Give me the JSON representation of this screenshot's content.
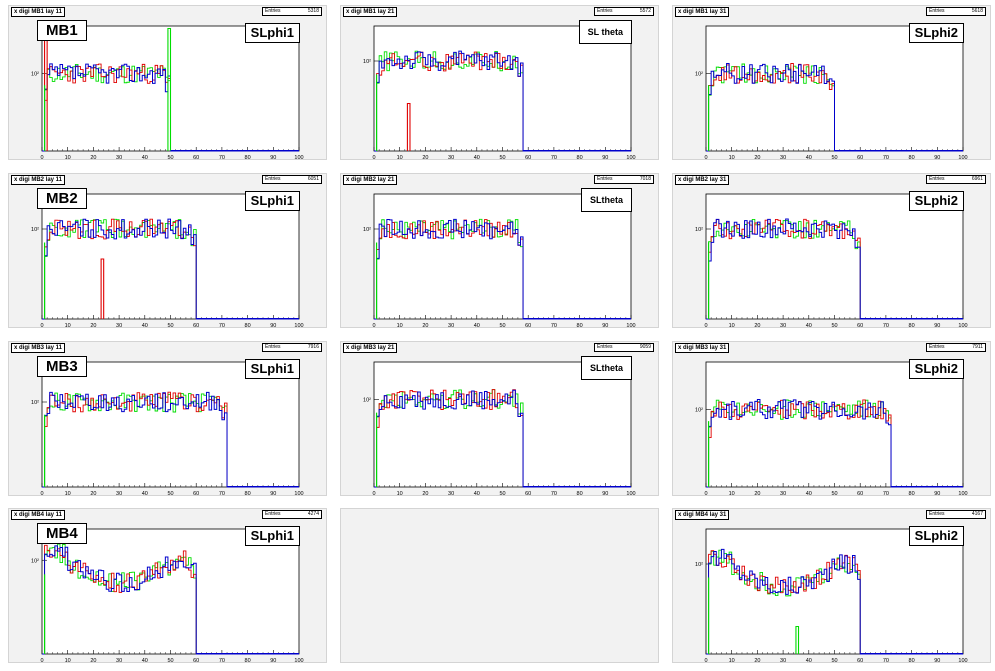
{
  "colors": {
    "red": "#e00000",
    "green": "#00dd00",
    "blue": "#0000cc",
    "frame": "#000000"
  },
  "axis": {
    "xmin": 0,
    "xmax": 100,
    "x_ticks": [
      "0",
      "10",
      "20",
      "30",
      "40",
      "50",
      "60",
      "70",
      "80",
      "90",
      "100"
    ],
    "y_tick": "10²",
    "log_y": true
  },
  "pads": [
    {
      "title": "x digi MB1 lay 11",
      "stats_label": "Entries",
      "entries": "5318",
      "mb": "MB1",
      "sl": "SLphi1",
      "sl_style": "big",
      "end": 50,
      "level": 0.62,
      "chart_data": {
        "type": "histogram",
        "x_range": [
          0,
          100
        ],
        "log_y": true,
        "series": [
          {
            "color": "red",
            "spikes": [
              [
                1,
                0.9
              ]
            ]
          },
          {
            "color": "green",
            "spikes": [
              [
                49,
                0.98
              ]
            ]
          },
          {
            "color": "blue",
            "plateau_end": 50
          }
        ]
      }
    },
    {
      "title": "x digi MB1 lay 21",
      "stats_label": "Entries",
      "entries": "5572",
      "sl": "SL theta",
      "sl_style": "small",
      "end": 58,
      "level": 0.72,
      "chart_data": {
        "type": "histogram",
        "x_range": [
          0,
          100
        ],
        "log_y": true,
        "series": [
          {
            "color": "red",
            "spikes": [
              [
                13,
                0.38
              ]
            ]
          },
          {
            "color": "blue",
            "plateau_end": 58
          }
        ]
      }
    },
    {
      "title": "x digi MB1 lay 31",
      "stats_label": "Entries",
      "entries": "5618",
      "sl": "SLphi2",
      "sl_style": "big",
      "end": 50,
      "level": 0.62,
      "chart_data": {
        "type": "histogram",
        "x_range": [
          0,
          100
        ],
        "log_y": true,
        "series": [
          {
            "color": "blue",
            "plateau_end": 50
          }
        ]
      }
    },
    {
      "title": "x digi MB2 lay 11",
      "stats_label": "Entries",
      "entries": "6051",
      "mb": "MB2",
      "sl": "SLphi1",
      "sl_style": "big",
      "end": 60,
      "level": 0.72,
      "chart_data": {
        "type": "histogram",
        "x_range": [
          0,
          100
        ],
        "log_y": true,
        "series": [
          {
            "color": "red",
            "spikes": [
              [
                23,
                0.48
              ]
            ]
          },
          {
            "color": "blue",
            "plateau_end": 60
          }
        ]
      }
    },
    {
      "title": "x digi MB2 lay 21",
      "stats_label": "Entries",
      "entries": "7018",
      "sl": "SLtheta",
      "sl_style": "small",
      "end": 58,
      "level": 0.72,
      "chart_data": {
        "type": "histogram",
        "x_range": [
          0,
          100
        ],
        "log_y": true,
        "series": [
          {
            "color": "blue",
            "plateau_end": 58
          }
        ]
      }
    },
    {
      "title": "x digi MB2 lay 31",
      "stats_label": "Entries",
      "entries": "6961",
      "sl": "SLphi2",
      "sl_style": "big",
      "end": 60,
      "level": 0.72,
      "chart_data": {
        "type": "histogram",
        "x_range": [
          0,
          100
        ],
        "log_y": true,
        "series": [
          {
            "color": "blue",
            "plateau_end": 60
          }
        ]
      }
    },
    {
      "title": "x digi MB3 lay 11",
      "stats_label": "Entries",
      "entries": "7916",
      "mb": "MB3",
      "sl": "SLphi1",
      "sl_style": "big",
      "end": 72,
      "level": 0.68,
      "chart_data": {
        "type": "histogram",
        "x_range": [
          0,
          100
        ],
        "log_y": true,
        "series": [
          {
            "color": "blue",
            "plateau_end": 72
          }
        ]
      }
    },
    {
      "title": "x digi MB3 lay 21",
      "stats_label": "Entries",
      "entries": "9059",
      "sl": "SLtheta",
      "sl_style": "small",
      "end": 58,
      "level": 0.7,
      "chart_data": {
        "type": "histogram",
        "x_range": [
          0,
          100
        ],
        "log_y": true,
        "series": [
          {
            "color": "blue",
            "plateau_end": 58
          }
        ]
      }
    },
    {
      "title": "x digi MB3 lay 31",
      "stats_label": "Entries",
      "entries": "7911",
      "sl": "SLphi2",
      "sl_style": "big",
      "end": 72,
      "level": 0.62,
      "chart_data": {
        "type": "histogram",
        "x_range": [
          0,
          100
        ],
        "log_y": true,
        "series": [
          {
            "color": "blue",
            "plateau_end": 72
          }
        ]
      }
    },
    {
      "title": "x digi MB4 lay 11",
      "stats_label": "Entries",
      "entries": "4274",
      "mb": "MB4",
      "sl": "SLphi1",
      "sl_style": "big",
      "end": 60,
      "level": 0.75,
      "shape": "dip",
      "chart_data": {
        "type": "histogram",
        "x_range": [
          0,
          100
        ],
        "log_y": true,
        "series": [
          {
            "color": "blue",
            "plateau_end": 60
          }
        ]
      }
    },
    {
      "empty": true
    },
    {
      "title": "x digi MB4 lay 31",
      "stats_label": "Entries",
      "entries": "4167",
      "sl": "SLphi2",
      "sl_style": "big",
      "end": 60,
      "level": 0.72,
      "shape": "dip",
      "chart_data": {
        "type": "histogram",
        "x_range": [
          0,
          100
        ],
        "log_y": true,
        "series": [
          {
            "color": "green",
            "spikes": [
              [
                35,
                0.22
              ]
            ]
          },
          {
            "color": "blue",
            "plateau_end": 60
          }
        ]
      }
    }
  ]
}
